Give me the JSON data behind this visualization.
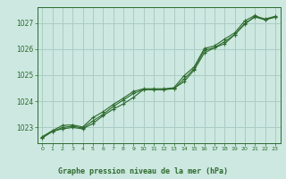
{
  "title": "Graphe pression niveau de la mer (hPa)",
  "bg_color": "#cce8e0",
  "grid_color": "#aaccc4",
  "line_color": "#2d6a2d",
  "x_values": [
    0,
    1,
    2,
    3,
    4,
    5,
    6,
    7,
    8,
    9,
    10,
    11,
    12,
    13,
    14,
    15,
    16,
    17,
    18,
    19,
    20,
    21,
    22,
    23
  ],
  "series1": [
    1022.6,
    1022.85,
    1022.95,
    1023.0,
    1022.95,
    1023.15,
    1023.45,
    1023.7,
    1023.9,
    1024.15,
    1024.45,
    1024.45,
    1024.45,
    1024.5,
    1024.75,
    1025.2,
    1025.85,
    1026.05,
    1026.2,
    1026.55,
    1026.95,
    1027.25,
    1027.15,
    1027.25
  ],
  "series2": [
    1022.62,
    1022.85,
    1023.0,
    1023.05,
    1022.98,
    1023.25,
    1023.5,
    1023.8,
    1024.05,
    1024.3,
    1024.45,
    1024.45,
    1024.45,
    1024.48,
    1024.85,
    1025.25,
    1025.95,
    1026.05,
    1026.28,
    1026.55,
    1026.98,
    1027.22,
    1027.12,
    1027.22
  ],
  "series3": [
    1022.65,
    1022.88,
    1023.08,
    1023.1,
    1023.02,
    1023.38,
    1023.6,
    1023.88,
    1024.12,
    1024.38,
    1024.48,
    1024.48,
    1024.48,
    1024.52,
    1024.98,
    1025.32,
    1026.02,
    1026.12,
    1026.38,
    1026.62,
    1027.08,
    1027.28,
    1027.12,
    1027.22
  ],
  "ylim": [
    1022.4,
    1027.6
  ],
  "yticks": [
    1023,
    1024,
    1025,
    1026,
    1027
  ],
  "xlim": [
    -0.5,
    23.5
  ],
  "xticks": [
    0,
    1,
    2,
    3,
    4,
    5,
    6,
    7,
    8,
    9,
    10,
    11,
    12,
    13,
    14,
    15,
    16,
    17,
    18,
    19,
    20,
    21,
    22,
    23
  ]
}
